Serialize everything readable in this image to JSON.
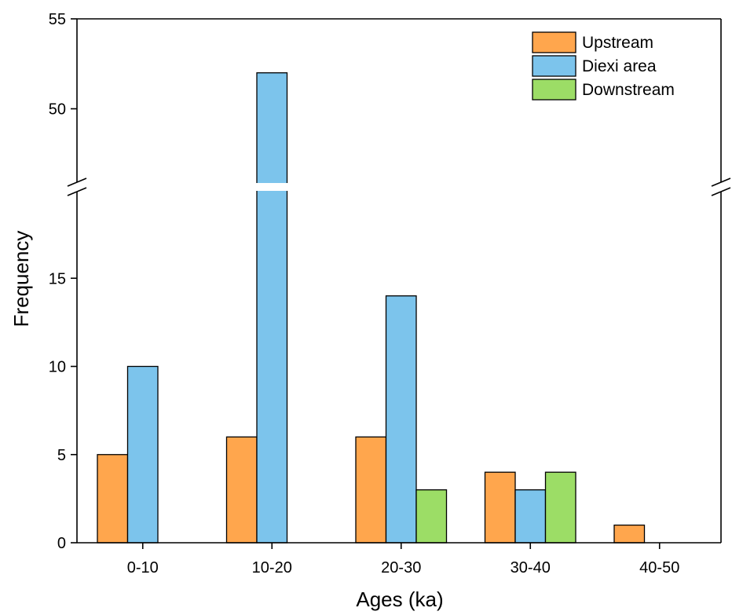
{
  "chart_data": {
    "type": "bar",
    "title": "",
    "xlabel": "Ages (ka)",
    "ylabel": "Frequency",
    "categories": [
      "0-10",
      "10-20",
      "20-30",
      "30-40",
      "40-50"
    ],
    "series": [
      {
        "name": "Upstream",
        "color": "#FFA64D",
        "values": [
          5,
          6,
          6,
          4,
          1
        ]
      },
      {
        "name": "Diexi area",
        "color": "#7CC4EC",
        "values": [
          10,
          52,
          14,
          3,
          0
        ]
      },
      {
        "name": "Downstream",
        "color": "#9CDD66",
        "values": [
          0,
          0,
          3,
          4,
          0
        ]
      }
    ],
    "y_axis": {
      "broken": true,
      "lower_segment": {
        "range": [
          0,
          20
        ],
        "ticks": [
          "0",
          "5",
          "10",
          "15"
        ]
      },
      "upper_segment": {
        "range": [
          45,
          55
        ],
        "ticks": [
          "50",
          "55"
        ]
      }
    },
    "grid": false,
    "legend_position": "top-right"
  }
}
